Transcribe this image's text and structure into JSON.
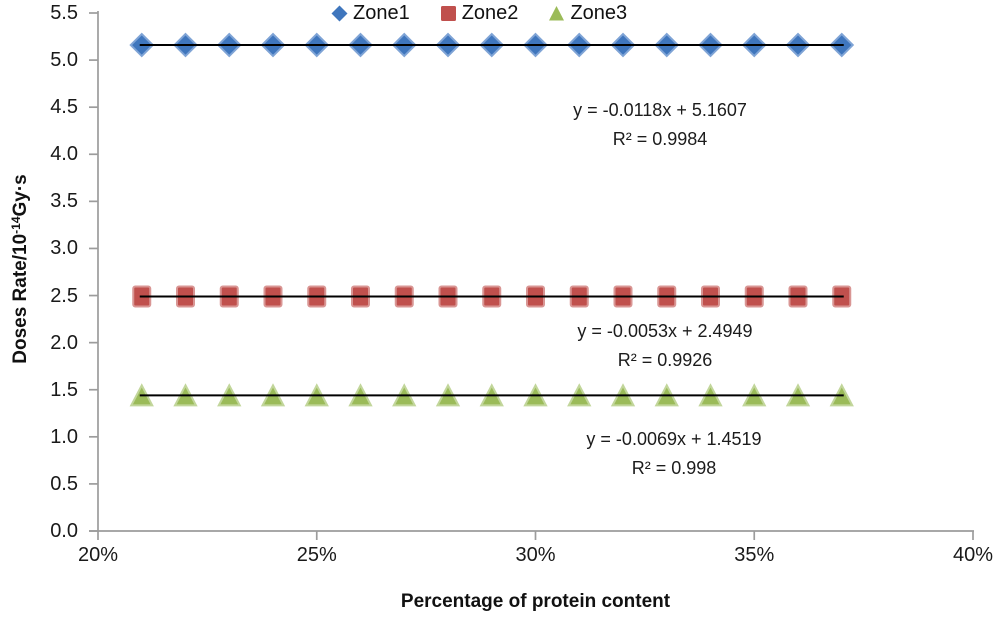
{
  "chart_data": {
    "type": "scatter",
    "title": "",
    "xlabel": "Percentage of protein content",
    "ylabel": "Doses Rate/10^-14 Gy·s",
    "ylabel_parts": {
      "pre": "Doses Rate/10",
      "sup": "-14",
      "post": "Gy·s"
    },
    "xlim": [
      20,
      40
    ],
    "ylim": [
      0,
      5.5
    ],
    "grid": false,
    "legend_position": "top-center",
    "axis_color": "#9c9c9c",
    "trendline_color": "#000000",
    "x_ticks": [
      "20%",
      "25%",
      "30%",
      "35%",
      "40%"
    ],
    "x_tick_values": [
      20,
      25,
      30,
      35,
      40
    ],
    "y_ticks": [
      "5.5",
      "5.0",
      "4.5",
      "4.0",
      "3.5",
      "3.0",
      "2.5",
      "2.0",
      "1.5",
      "1.0",
      "0.5",
      "0.0"
    ],
    "y_tick_values": [
      5.5,
      5.0,
      4.5,
      4.0,
      3.5,
      3.0,
      2.5,
      2.0,
      1.5,
      1.0,
      0.5,
      0.0
    ],
    "x": [
      21,
      22,
      23,
      24,
      25,
      26,
      27,
      28,
      29,
      30,
      31,
      32,
      33,
      34,
      35,
      36,
      37
    ],
    "x_unit": "percent",
    "series": [
      {
        "name": "Zone1",
        "marker": "diamond",
        "color": "#3f76bd",
        "border": "#7fa4d6",
        "values": [
          5.16,
          5.16,
          5.16,
          5.16,
          5.16,
          5.16,
          5.16,
          5.16,
          5.16,
          5.16,
          5.16,
          5.16,
          5.16,
          5.16,
          5.16,
          5.16,
          5.16
        ],
        "y_mean": 5.16,
        "trendline": {
          "equation": "y = -0.0118x + 5.1607",
          "r2": "R² = 0.9984"
        }
      },
      {
        "name": "Zone2",
        "marker": "square",
        "color": "#c0504d",
        "border": "#d99694",
        "values": [
          2.49,
          2.49,
          2.49,
          2.49,
          2.49,
          2.49,
          2.49,
          2.49,
          2.49,
          2.49,
          2.49,
          2.49,
          2.49,
          2.49,
          2.49,
          2.49,
          2.49
        ],
        "y_mean": 2.49,
        "trendline": {
          "equation": "y = -0.0053x + 2.4949",
          "r2": "R² = 0.9926"
        }
      },
      {
        "name": "Zone3",
        "marker": "triangle",
        "color": "#9bbb59",
        "border": "#c2d69b",
        "values": [
          1.44,
          1.44,
          1.44,
          1.44,
          1.44,
          1.44,
          1.44,
          1.44,
          1.44,
          1.44,
          1.44,
          1.44,
          1.44,
          1.44,
          1.44,
          1.44,
          1.44
        ],
        "y_mean": 1.44,
        "trendline": {
          "equation": "y = -0.0069x + 1.4519",
          "r2": "R² = 0.998"
        }
      }
    ]
  }
}
